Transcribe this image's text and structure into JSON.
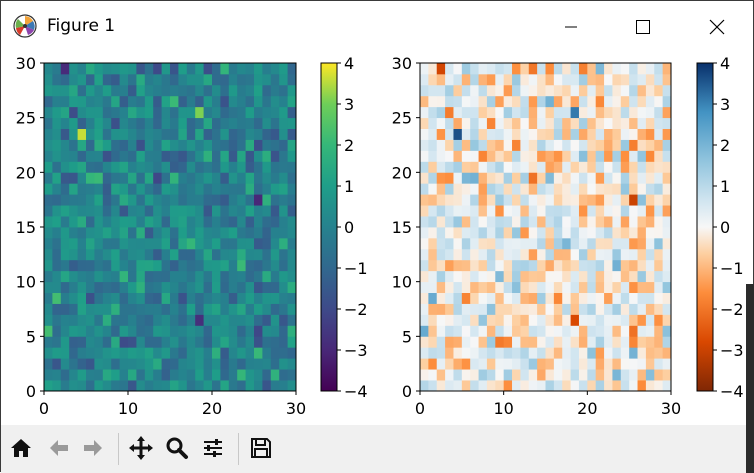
{
  "window": {
    "title": "Figure 1"
  },
  "colors": {
    "viridis_top": "#fde725",
    "viridis_bottom": "#440154",
    "rdbu_top": "#053061",
    "rdbu_bottom": "#67001f"
  },
  "toolbar": {
    "buttons": [
      "home-icon",
      "back-arrow-icon",
      "forward-arrow-icon",
      "pan-icon",
      "zoom-icon",
      "configure-subplots-icon",
      "save-icon"
    ]
  },
  "chart_data": [
    {
      "type": "heatmap",
      "colormap": "viridis",
      "grid_size": [
        30,
        30
      ],
      "xlim": [
        0,
        30
      ],
      "ylim": [
        0,
        30
      ],
      "xticks": [
        "0",
        "10",
        "20",
        "30"
      ],
      "yticks": [
        "0",
        "5",
        "10",
        "15",
        "20",
        "25",
        "30"
      ],
      "colorbar": {
        "range": [
          -4,
          4
        ],
        "ticks": [
          "4",
          "3",
          "2",
          "1",
          "0",
          "−1",
          "−2",
          "−3",
          "−4"
        ]
      },
      "highlights": [
        {
          "x": 4,
          "y": 23,
          "value": 3.6
        },
        {
          "x": 18,
          "y": 25,
          "value": 3.1
        },
        {
          "x": 25,
          "y": 17,
          "value": -3.0
        },
        {
          "x": 18,
          "y": 6,
          "value": -2.8
        },
        {
          "x": 2,
          "y": 29,
          "value": -2.9
        }
      ]
    },
    {
      "type": "heatmap",
      "colormap": "RdBu",
      "grid_size": [
        30,
        30
      ],
      "xlim": [
        0,
        30
      ],
      "ylim": [
        0,
        30
      ],
      "xticks": [
        "0",
        "10",
        "20",
        "30"
      ],
      "yticks": [
        "0",
        "5",
        "10",
        "15",
        "20",
        "25",
        "30"
      ],
      "colorbar": {
        "range": [
          -4,
          4
        ],
        "ticks": [
          "4",
          "3",
          "2",
          "1",
          "0",
          "−1",
          "−2",
          "−3",
          "−4"
        ]
      },
      "highlights": [
        {
          "x": 4,
          "y": 23,
          "value": 3.6
        },
        {
          "x": 18,
          "y": 25,
          "value": 3.1
        },
        {
          "x": 25,
          "y": 17,
          "value": -3.0
        },
        {
          "x": 18,
          "y": 6,
          "value": -2.8
        },
        {
          "x": 2,
          "y": 29,
          "value": -2.9
        }
      ]
    }
  ]
}
